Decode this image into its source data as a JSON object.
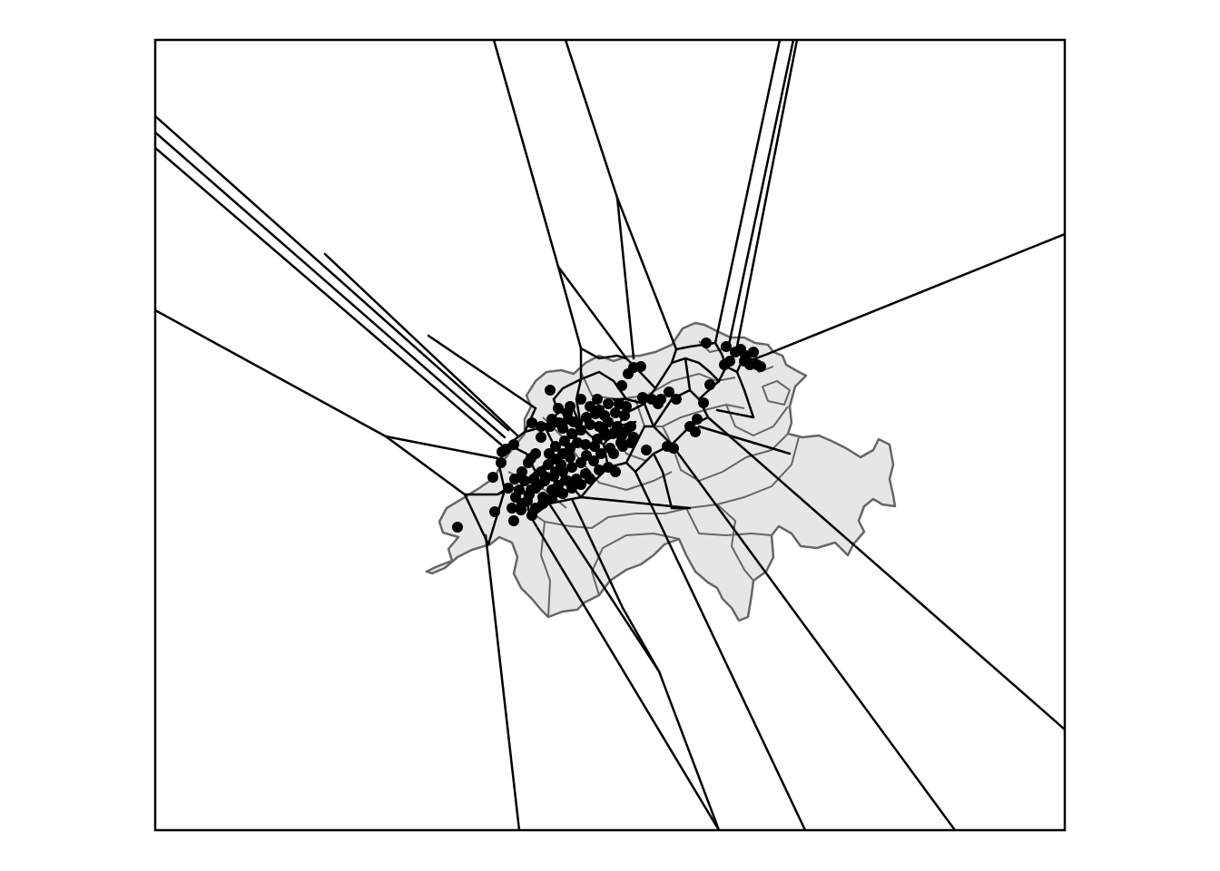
{
  "map": {
    "type": "voronoi-diagram",
    "colors": {
      "background": "#ffffff",
      "frame": "#000000",
      "land_fill": "#e6e6e6",
      "land_border": "#666666",
      "edges": "#000000",
      "points": "#000000"
    },
    "legend": "none",
    "grid": false
  }
}
